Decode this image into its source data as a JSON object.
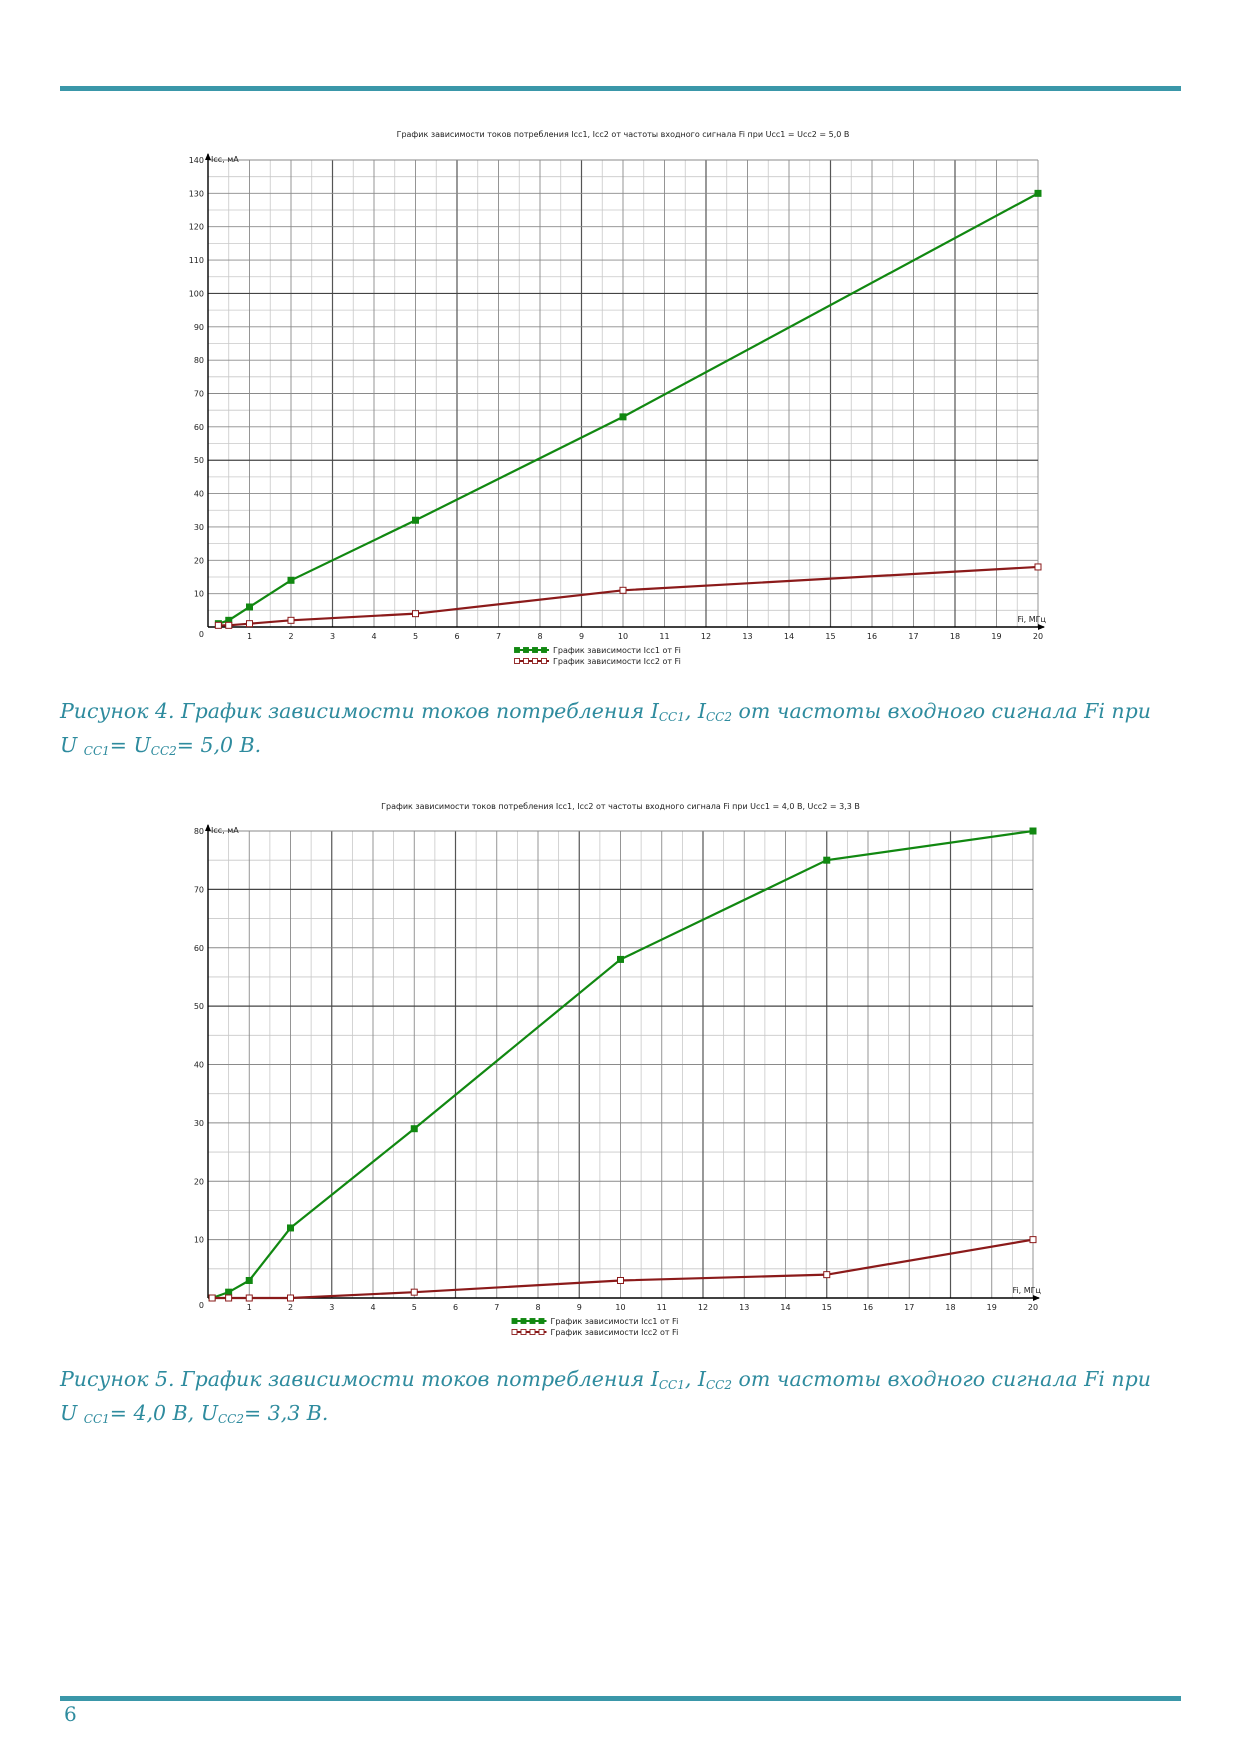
{
  "page": {
    "number": "6"
  },
  "colors": {
    "accent": "#3a97a9",
    "caption": "#2e8b9e",
    "series_icc1": "#118811",
    "series_icc2": "#8b1a1a"
  },
  "captions": [
    {
      "p1": "Рисунок 4. График зависимости токов потребления I",
      "s1": "CC1",
      "p2": ", I",
      "s2": "CC2",
      "p3": " от частоты входного сигнала Fi при",
      "p4": "U ",
      "s3": "CC1",
      "p5": "= U",
      "s4": "CC2",
      "p6": "= 5,0 В."
    },
    {
      "p1": "Рисунок 5. График зависимости токов потребления I",
      "s1": "CC1",
      "p2": ", I",
      "s2": "CC2",
      "p3": " от частоты входного сигнала Fi при",
      "p4": "U ",
      "s3": "CC1",
      "p5": "= 4,0 В, U",
      "s4": "CC2",
      "p6": "= 3,3 В."
    }
  ],
  "chart_data": [
    {
      "type": "line",
      "title": "График зависимости токов потребления Icc1, Icc2 от частоты входного сигнала Fi при Ucc1 = Ucc2 = 5,0 В",
      "xlabel": "Fi, МГц",
      "ylabel": "Icc, мА",
      "origin_label": "0",
      "xlim": [
        0,
        20
      ],
      "ylim": [
        0,
        140
      ],
      "xticks": [
        1,
        2,
        3,
        4,
        5,
        6,
        7,
        8,
        9,
        10,
        11,
        12,
        13,
        14,
        15,
        16,
        17,
        18,
        19,
        20
      ],
      "yticks": [
        10,
        20,
        30,
        40,
        50,
        60,
        70,
        80,
        90,
        100,
        110,
        120,
        130,
        140
      ],
      "grid": true,
      "legend_position": "bottom",
      "series": [
        {
          "name": "График зависимости Icc1 от Fi",
          "color": "#118811",
          "marker": "filled-square",
          "points": [
            [
              0.25,
              1
            ],
            [
              0.5,
              2
            ],
            [
              1,
              6
            ],
            [
              2,
              14
            ],
            [
              5,
              32
            ],
            [
              10,
              63
            ],
            [
              20,
              130
            ]
          ]
        },
        {
          "name": "График зависимости Icc2 от Fi",
          "color": "#8b1a1a",
          "marker": "open-square",
          "points": [
            [
              0.25,
              0.5
            ],
            [
              0.5,
              0.5
            ],
            [
              1,
              1
            ],
            [
              2,
              2
            ],
            [
              5,
              4
            ],
            [
              10,
              11
            ],
            [
              20,
              18
            ]
          ]
        }
      ]
    },
    {
      "type": "line",
      "title": "График зависимости токов потребления Icc1, Icc2 от частоты входного сигнала Fi при Ucc1 = 4,0 В, Ucc2 = 3,3 В",
      "xlabel": "Fi, МГц",
      "ylabel": "Icc, мА",
      "origin_label": "0",
      "xlim": [
        0,
        20
      ],
      "ylim": [
        0,
        80
      ],
      "xticks": [
        1,
        2,
        3,
        4,
        5,
        6,
        7,
        8,
        9,
        10,
        11,
        12,
        13,
        14,
        15,
        16,
        17,
        18,
        19,
        20
      ],
      "yticks": [
        10,
        20,
        30,
        40,
        50,
        60,
        70,
        80
      ],
      "grid": true,
      "legend_position": "bottom",
      "series": [
        {
          "name": "График зависимости Icc1 от Fi",
          "color": "#118811",
          "marker": "filled-square",
          "points": [
            [
              0.1,
              0
            ],
            [
              0.5,
              1
            ],
            [
              1,
              3
            ],
            [
              2,
              12
            ],
            [
              5,
              29
            ],
            [
              10,
              58
            ],
            [
              15,
              75
            ],
            [
              20,
              80
            ]
          ]
        },
        {
          "name": "График зависимости Icc2 от Fi",
          "color": "#8b1a1a",
          "marker": "open-square",
          "points": [
            [
              0.1,
              0
            ],
            [
              0.5,
              0
            ],
            [
              1,
              0
            ],
            [
              2,
              0
            ],
            [
              5,
              1
            ],
            [
              10,
              3
            ],
            [
              15,
              4
            ],
            [
              20,
              10
            ]
          ]
        }
      ]
    }
  ]
}
